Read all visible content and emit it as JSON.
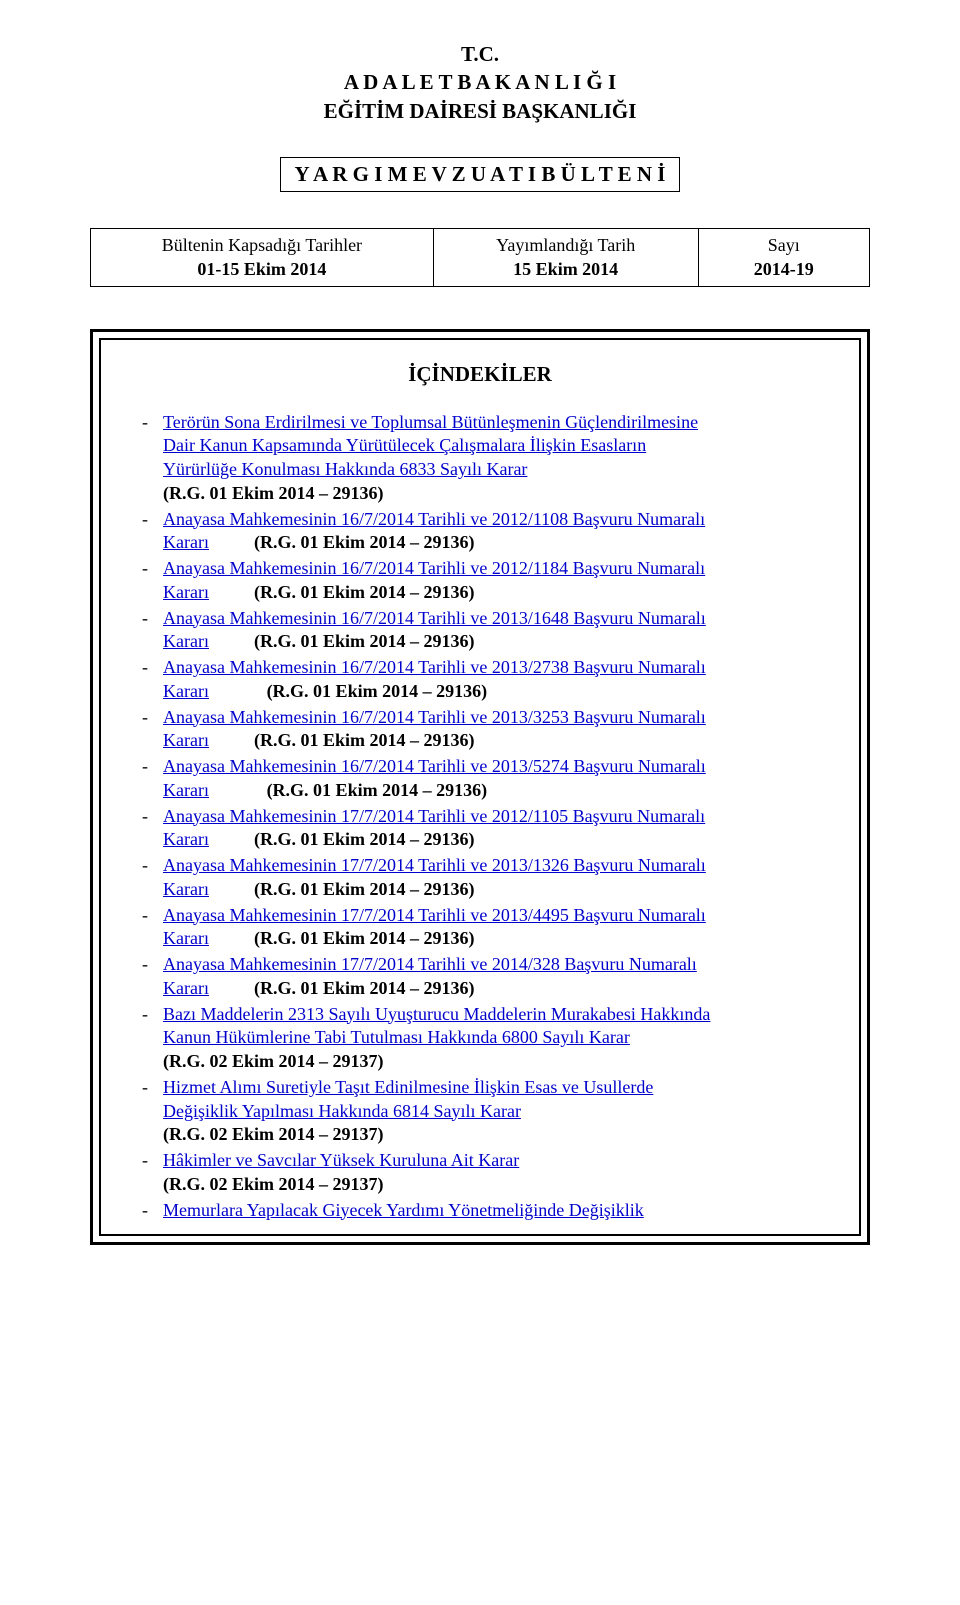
{
  "header": {
    "line1": "T.C.",
    "line2": "A D A L E T   B A K A N L I Ğ I",
    "line3": "EĞİTİM DAİRESİ BAŞKANLIĞI"
  },
  "titleBox": "Y A R G I   M E V Z U A T I   B Ü L T E N İ",
  "infoTable": {
    "col1": {
      "l1": "Bültenin Kapsadığı Tarihler",
      "l2": "01-15 Ekim 2014"
    },
    "col2": {
      "l1": "Yayımlandığı Tarih",
      "l2": "15 Ekim 2014"
    },
    "col3": {
      "l1": "Sayı",
      "l2": "2014-19"
    }
  },
  "contentsTitle": "İÇİNDEKİLER",
  "dash": "-",
  "link_color": "#0000cc",
  "text_color": "#000000",
  "entries": [
    {
      "lines": [
        {
          "text": "Terörün Sona Erdirilmesi ve Toplumsal Bütünleşmenin Güçlendirilmesine",
          "link": true
        },
        {
          "text": "Dair Kanun Kapsamında Yürütülecek Çalışmalara İlişkin Esasların",
          "link": true
        },
        {
          "text": "Yürürlüğe Konulması Hakkında 6833 Sayılı Karar",
          "link": true
        }
      ],
      "ref": "(R.G. 01 Ekim 2014 – 29136)",
      "ref_prefix": "",
      "ref_gap": ""
    },
    {
      "lines": [
        {
          "text": "Anayasa Mahkemesinin 16/7/2014 Tarihli ve 2012/1108 Başvuru Numaralı",
          "link": true
        }
      ],
      "karari": "Kararı",
      "ref": "(R.G. 01 Ekim 2014 – 29136)",
      "gap": "gap"
    },
    {
      "lines": [
        {
          "text": "Anayasa Mahkemesinin 16/7/2014 Tarihli ve 2012/1184 Başvuru Numaralı",
          "link": true
        }
      ],
      "karari": "Kararı",
      "ref": "(R.G. 01 Ekim 2014 – 29136)",
      "gap": "gap"
    },
    {
      "lines": [
        {
          "text": "Anayasa Mahkemesinin 16/7/2014 Tarihli ve 2013/1648 Başvuru Numaralı",
          "link": true
        }
      ],
      "karari": "Kararı",
      "ref": "(R.G. 01 Ekim 2014 – 29136)",
      "gap": "gap"
    },
    {
      "lines": [
        {
          "text": "Anayasa Mahkemesinin 16/7/2014 Tarihli ve 2013/2738 Başvuru Numaralı",
          "link": true
        }
      ],
      "karari": "Kararı",
      "ref": "(R.G. 01 Ekim 2014 – 29136)",
      "gap": "gap-wide"
    },
    {
      "lines": [
        {
          "text": "Anayasa Mahkemesinin 16/7/2014 Tarihli ve 2013/3253 Başvuru Numaralı",
          "link": true
        }
      ],
      "karari": "Kararı",
      "ref": "(R.G. 01 Ekim 2014 – 29136)",
      "gap": "gap"
    },
    {
      "lines": [
        {
          "text": "Anayasa Mahkemesinin 16/7/2014 Tarihli ve 2013/5274 Başvuru Numaralı",
          "link": true
        }
      ],
      "karari": "Kararı",
      "ref": "(R.G. 01 Ekim 2014 – 29136)",
      "gap": "gap-wide"
    },
    {
      "lines": [
        {
          "text": "Anayasa Mahkemesinin 17/7/2014 Tarihli ve 2012/1105 Başvuru Numaralı",
          "link": true
        }
      ],
      "karari": "Kararı",
      "ref": "(R.G. 01 Ekim 2014 – 29136)",
      "gap": "gap"
    },
    {
      "lines": [
        {
          "text": "Anayasa Mahkemesinin 17/7/2014 Tarihli ve 2013/1326 Başvuru Numaralı",
          "link": true
        }
      ],
      "karari": "Kararı",
      "ref": "(R.G. 01 Ekim 2014 – 29136)",
      "gap": "gap"
    },
    {
      "lines": [
        {
          "text": "Anayasa Mahkemesinin 17/7/2014 Tarihli ve 2013/4495 Başvuru Numaralı",
          "link": true
        }
      ],
      "karari": "Kararı",
      "ref": "(R.G. 01 Ekim 2014 – 29136)",
      "gap": "gap"
    },
    {
      "lines": [
        {
          "text": "Anayasa Mahkemesinin 17/7/2014 Tarihli ve 2014/328 Başvuru Numaralı",
          "link": true
        }
      ],
      "karari": "Kararı",
      "ref": "(R.G. 01 Ekim 2014 – 29136)",
      "gap": "gap"
    },
    {
      "lines": [
        {
          "text": "Bazı Maddelerin 2313 Sayılı Uyuşturucu Maddelerin Murakabesi Hakkında",
          "link": true
        },
        {
          "text": "Kanun Hükümlerine Tabi Tutulması Hakkında 6800 Sayılı Karar",
          "link": true
        }
      ],
      "ref": "(R.G. 02 Ekim 2014 – 29137)"
    },
    {
      "lines": [
        {
          "text": "Hizmet Alımı Suretiyle Taşıt Edinilmesine İlişkin Esas ve Usullerde",
          "link": true
        },
        {
          "text": "Değişiklik Yapılması Hakkında 6814 Sayılı Karar",
          "link": true
        }
      ],
      "ref": "(R.G. 02 Ekim 2014 – 29137)"
    },
    {
      "lines": [
        {
          "text": "Hâkimler ve Savcılar Yüksek Kuruluna Ait Karar",
          "link": true
        }
      ],
      "ref": "(R.G. 02 Ekim 2014 – 29137)"
    },
    {
      "lines": [
        {
          "text": "Memurlara Yapılacak Giyecek Yardımı Yönetmeliğinde Değişiklik",
          "link": true
        }
      ]
    }
  ]
}
